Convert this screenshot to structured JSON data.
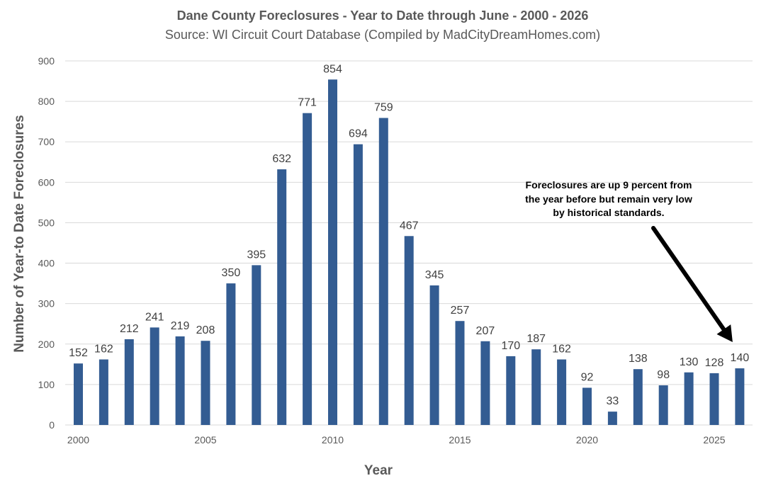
{
  "chart_data": {
    "type": "bar",
    "title": "Dane County Foreclosures - Year to Date through June - 2000 - 2026",
    "subtitle": "Source: WI Circuit Court Database (Compiled by MadCityDreamHomes.com)",
    "xlabel": "Year",
    "ylabel": "Number of Year-to Date Foreclosures",
    "ylim": [
      0,
      900
    ],
    "yticks": [
      "0",
      "100",
      "200",
      "300",
      "400",
      "500",
      "600",
      "700",
      "800",
      "900"
    ],
    "xtick_labels": [
      "2000",
      "2005",
      "2010",
      "2015",
      "2020",
      "2025"
    ],
    "categories": [
      2000,
      2001,
      2002,
      2003,
      2004,
      2005,
      2006,
      2007,
      2008,
      2009,
      2010,
      2011,
      2012,
      2013,
      2014,
      2015,
      2016,
      2017,
      2018,
      2019,
      2020,
      2021,
      2022,
      2023,
      2024,
      2025,
      2026
    ],
    "values": [
      152,
      162,
      212,
      241,
      219,
      208,
      350,
      395,
      632,
      771,
      854,
      694,
      759,
      467,
      345,
      257,
      207,
      170,
      187,
      162,
      92,
      33,
      138,
      98,
      130,
      128,
      140
    ],
    "bar_color": "#335c92",
    "grid": "horizontal",
    "legend": "none",
    "annotation": {
      "lines": [
        "Foreclosures are up 9 percent from",
        "the year before but remain very low",
        "by historical standards."
      ],
      "arrow_target_year": 2026,
      "arrow_color": "#000000"
    }
  }
}
